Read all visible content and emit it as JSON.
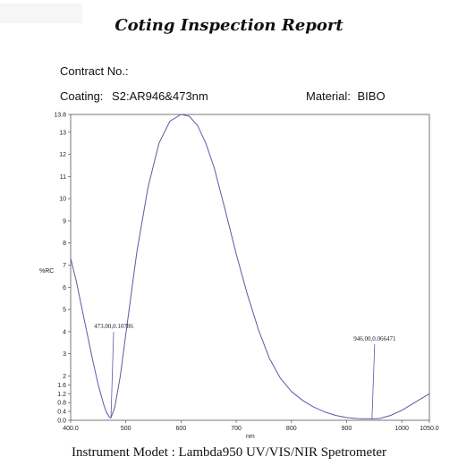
{
  "report": {
    "title": "Coting Inspection Report",
    "contract_label": "Contract No.:",
    "coating_label": "Coating:",
    "coating_value": "S2:AR946&473nm",
    "material_label": "Material:",
    "material_value": "BIBO",
    "footer": "Instrument Modet : Lambda950 UV/VIS/NIR Spetrometer"
  },
  "chart_data": {
    "type": "line",
    "xlabel": "nm",
    "ylabel": "%RC",
    "xlim": [
      400,
      1050
    ],
    "ylim": [
      0,
      13.8
    ],
    "x_ticks": [
      "400.0",
      "500",
      "600",
      "700",
      "800",
      "900",
      "1000",
      "1050.0"
    ],
    "y_ticks": [
      "0.0",
      "0.4",
      "0.8",
      "1.2",
      "1.6",
      "2",
      "3",
      "4",
      "5",
      "6",
      "7",
      "8",
      "9",
      "10",
      "11",
      "12",
      "13",
      "13.8"
    ],
    "series": [
      {
        "color": "#5a5aa8",
        "x": [
          400,
          410,
          420,
          430,
          440,
          450,
          460,
          465,
          470,
          473,
          480,
          490,
          500,
          520,
          540,
          560,
          580,
          600,
          615,
          630,
          645,
          660,
          680,
          700,
          720,
          740,
          760,
          780,
          800,
          820,
          840,
          860,
          880,
          900,
          920,
          930,
          946,
          960,
          980,
          1000,
          1020,
          1050
        ],
        "y": [
          7.3,
          6.3,
          5.1,
          3.9,
          2.7,
          1.6,
          0.7,
          0.35,
          0.15,
          0.108,
          0.6,
          2.0,
          3.9,
          7.6,
          10.5,
          12.5,
          13.5,
          13.8,
          13.72,
          13.3,
          12.5,
          11.4,
          9.5,
          7.5,
          5.7,
          4.1,
          2.8,
          1.9,
          1.3,
          0.9,
          0.6,
          0.38,
          0.22,
          0.12,
          0.075,
          0.068,
          0.066,
          0.08,
          0.22,
          0.45,
          0.75,
          1.2
        ]
      }
    ],
    "annotations": [
      {
        "x": 473,
        "y": 0.10786,
        "text": "473.00,0.10786",
        "label_y": 4.15
      },
      {
        "x": 946,
        "y": 0.066471,
        "text": "946.00,0.066471",
        "label_y": 3.6
      }
    ],
    "grid": false
  }
}
